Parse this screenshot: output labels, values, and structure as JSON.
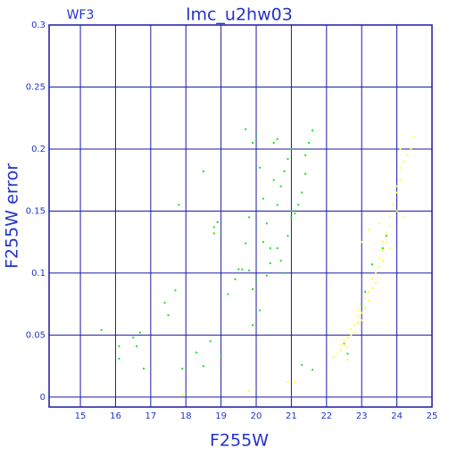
{
  "chart_data": {
    "type": "scatter",
    "label": "WF3",
    "title": "lmc_u2hw03",
    "x_label": "F255W",
    "y_label": "F255W error",
    "xlim": [
      14.11,
      25
    ],
    "ylim": [
      -0.008,
      0.3
    ],
    "xticks": [
      15,
      16,
      17,
      18,
      19,
      20,
      21,
      22,
      23,
      24,
      25
    ],
    "yticks": [
      0,
      0.05,
      0.1,
      0.15,
      0.2,
      0.25,
      0.3
    ],
    "grid": true,
    "grid_color": "#1a1aa6",
    "series": [
      {
        "color": "#22dd22",
        "x": [
          15.6,
          16.1,
          16.1,
          16.5,
          16.6,
          16.7,
          16.8,
          17.4,
          17.5,
          17.7,
          17.8,
          17.9,
          18.3,
          18.5,
          18.5,
          18.7,
          18.8,
          18.8,
          18.9,
          19.0,
          19.0,
          19.2,
          19.4,
          19.5,
          19.6,
          19.7,
          19.7,
          19.8,
          19.8,
          19.9,
          19.9,
          19.9,
          20.0,
          20.0,
          20.1,
          20.1,
          20.2,
          20.2,
          20.3,
          20.3,
          20.4,
          20.4,
          20.5,
          20.5,
          20.6,
          20.6,
          20.6,
          20.7,
          20.7,
          20.8,
          20.8,
          20.9,
          20.9,
          21.0,
          21.0,
          21.0,
          21.1,
          21.2,
          21.3,
          21.3,
          21.4,
          21.4,
          21.5,
          21.5,
          21.6,
          21.6,
          22.5,
          22.6,
          23.0,
          23.3,
          23.6,
          23.7,
          22.9,
          23.1
        ],
        "values": [
          0.054,
          0.041,
          0.031,
          0.048,
          0.041,
          0.052,
          0.023,
          0.076,
          0.066,
          0.086,
          0.155,
          0.023,
          0.036,
          0.025,
          0.182,
          0.045,
          0.132,
          0.137,
          0.141,
          0.133,
          0.033,
          0.083,
          0.095,
          0.103,
          0.103,
          0.216,
          0.124,
          0.102,
          0.145,
          0.058,
          0.087,
          0.205,
          0.095,
          0.212,
          0.185,
          0.07,
          0.16,
          0.125,
          0.098,
          0.14,
          0.108,
          0.12,
          0.205,
          0.175,
          0.12,
          0.208,
          0.155,
          0.11,
          0.17,
          0.182,
          0.1,
          0.13,
          0.192,
          0.15,
          0.2,
          0.145,
          0.148,
          0.155,
          0.165,
          0.026,
          0.18,
          0.195,
          0.2,
          0.205,
          0.215,
          0.022,
          0.043,
          0.035,
          0.075,
          0.107,
          0.12,
          0.13,
          0.06,
          0.085
        ]
      },
      {
        "color": "#ffff33",
        "x": [
          22.2,
          22.3,
          22.4,
          22.5,
          22.5,
          22.6,
          22.6,
          22.7,
          22.7,
          22.8,
          22.8,
          22.9,
          22.9,
          22.9,
          23.0,
          23.0,
          23.1,
          23.1,
          23.2,
          23.2,
          23.3,
          23.3,
          23.4,
          23.4,
          23.5,
          23.5,
          23.6,
          23.6,
          23.6,
          23.7,
          23.7,
          23.8,
          23.8,
          23.0,
          23.2,
          23.5,
          23.9,
          24.0,
          24.0,
          24.1,
          24.1,
          24.2,
          24.3,
          24.4,
          24.5,
          24.1,
          24.0,
          24.2,
          22.4,
          22.6,
          23.8,
          19.8,
          17.9,
          20.9,
          21.1
        ],
        "values": [
          0.032,
          0.035,
          0.038,
          0.042,
          0.045,
          0.048,
          0.04,
          0.05,
          0.055,
          0.052,
          0.058,
          0.06,
          0.065,
          0.07,
          0.062,
          0.068,
          0.072,
          0.08,
          0.078,
          0.085,
          0.088,
          0.095,
          0.092,
          0.1,
          0.105,
          0.112,
          0.11,
          0.118,
          0.125,
          0.125,
          0.132,
          0.138,
          0.145,
          0.125,
          0.135,
          0.14,
          0.155,
          0.165,
          0.17,
          0.175,
          0.185,
          0.19,
          0.195,
          0.2,
          0.21,
          0.2,
          0.15,
          0.145,
          0.042,
          0.03,
          0.12,
          0.005,
          0.002,
          0.012,
          0.012
        ]
      }
    ]
  }
}
